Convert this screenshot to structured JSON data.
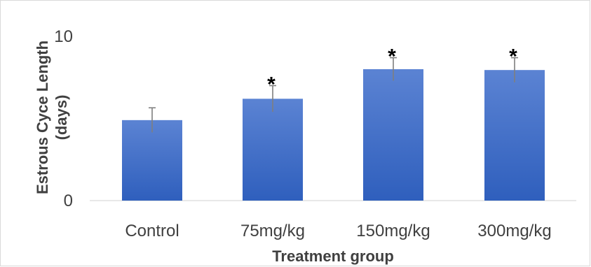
{
  "chart_data": {
    "type": "bar",
    "categories": [
      "Control",
      "75mg/kg",
      "150mg/kg",
      "300mg/kg"
    ],
    "values": [
      4.9,
      6.2,
      8.0,
      7.95
    ],
    "error": [
      0.75,
      0.8,
      0.7,
      0.75
    ],
    "annotations": [
      "",
      "*",
      "*",
      "*"
    ],
    "title": "",
    "xlabel": "Treatment group",
    "ylabel_line1": "Estrous Cyce Length",
    "ylabel_line2": "(days)",
    "ylim": [
      0,
      10
    ],
    "yticks": [
      "0",
      "10"
    ],
    "grid": false,
    "legend": "none",
    "colors": {
      "bar_top": "#5b83d3",
      "bar_bottom": "#2f5fbd",
      "error": "#7f7f7f"
    }
  }
}
